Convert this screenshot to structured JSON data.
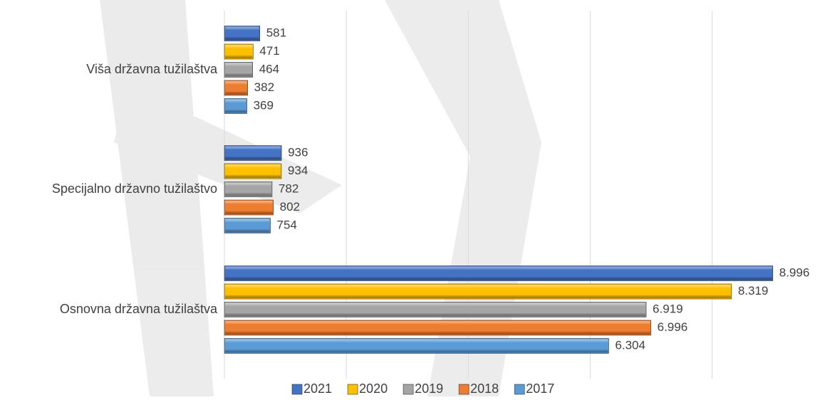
{
  "chart_data": {
    "type": "bar",
    "orientation": "horizontal",
    "categories": [
      "Viša državna tužilaštva",
      "Specijalno državno tužilaštvo",
      "Osnovna državna tužilaštva"
    ],
    "series": [
      {
        "name": "2021",
        "color": "#4472c4",
        "values": [
          581,
          936,
          8996
        ],
        "value_labels": [
          "581",
          "936",
          "8.996"
        ]
      },
      {
        "name": "2020",
        "color": "#ffc000",
        "values": [
          471,
          934,
          8319
        ],
        "value_labels": [
          "471",
          "934",
          "8.319"
        ]
      },
      {
        "name": "2019",
        "color": "#a5a5a5",
        "values": [
          464,
          782,
          6919
        ],
        "value_labels": [
          "464",
          "782",
          "6.919"
        ]
      },
      {
        "name": "2018",
        "color": "#ed7d31",
        "values": [
          382,
          802,
          6996
        ],
        "value_labels": [
          "382",
          "802",
          "6.996"
        ]
      },
      {
        "name": "2017",
        "color": "#5b9bd5",
        "values": [
          369,
          754,
          6304
        ],
        "value_labels": [
          "369",
          "754",
          "6.304"
        ]
      }
    ],
    "xlim": [
      0,
      9700
    ],
    "xticks": [
      0,
      2000,
      4000,
      6000,
      8000
    ],
    "grid": true,
    "legend": "bottom"
  }
}
